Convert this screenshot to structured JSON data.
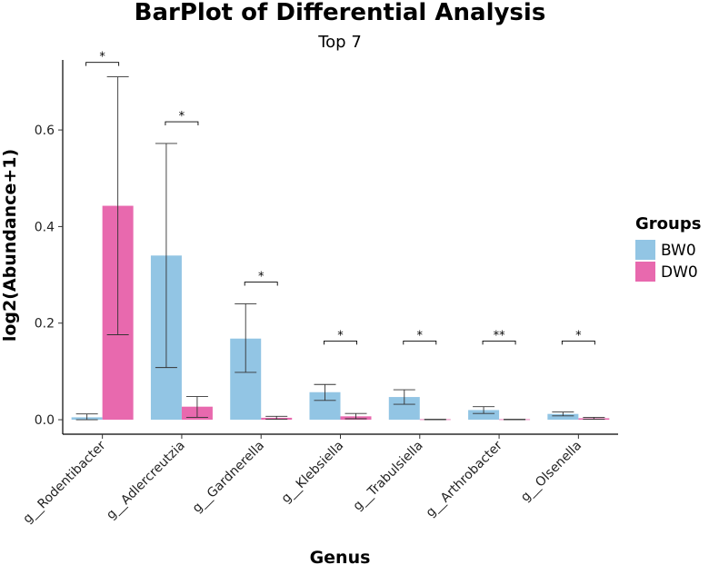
{
  "chart_data": {
    "type": "bar",
    "title": "BarPlot of Differential Analysis",
    "subtitle": "Top 7",
    "xlabel": "Genus",
    "ylabel": "log2(Abundance+1)",
    "ylim": [
      -0.03,
      0.745
    ],
    "yticks": [
      0.0,
      0.2,
      0.4,
      0.6
    ],
    "ytick_labels": [
      "0.0",
      "0.2",
      "0.4",
      "0.6"
    ],
    "grid": false,
    "categories": [
      "g__Rodentibacter",
      "g__Adlercreutzia",
      "g__Gardnerella",
      "g__Klebsiella",
      "g__Trabulsiella",
      "g__Arthrobacter",
      "g__Olsenella"
    ],
    "series": [
      {
        "name": "BW0",
        "color": "#92c5e4",
        "values": [
          0.005,
          0.34,
          0.168,
          0.057,
          0.047,
          0.02,
          0.012
        ],
        "err_low": [
          0.0,
          0.108,
          0.098,
          0.04,
          0.032,
          0.013,
          0.008
        ],
        "err_high": [
          0.012,
          0.572,
          0.24,
          0.073,
          0.062,
          0.027,
          0.016
        ]
      },
      {
        "name": "DW0",
        "color": "#e869ae",
        "values": [
          0.443,
          0.027,
          0.004,
          0.007,
          0.001,
          0.001,
          0.003
        ],
        "err_low": [
          0.176,
          0.005,
          0.001,
          0.002,
          0.0,
          0.0,
          0.001
        ],
        "err_high": [
          0.71,
          0.048,
          0.007,
          0.013,
          0.001,
          0.001,
          0.005
        ]
      }
    ],
    "significance": [
      {
        "label": "*",
        "level": 0.74
      },
      {
        "label": "*",
        "level": 0.617
      },
      {
        "label": "*",
        "level": 0.285
      },
      {
        "label": "*",
        "level": 0.163
      },
      {
        "label": "*",
        "level": 0.163
      },
      {
        "label": "**",
        "level": 0.163
      },
      {
        "label": "*",
        "level": 0.163
      }
    ],
    "legend": {
      "title": "Groups",
      "position": "right",
      "entries": [
        "BW0",
        "DW0"
      ]
    }
  }
}
